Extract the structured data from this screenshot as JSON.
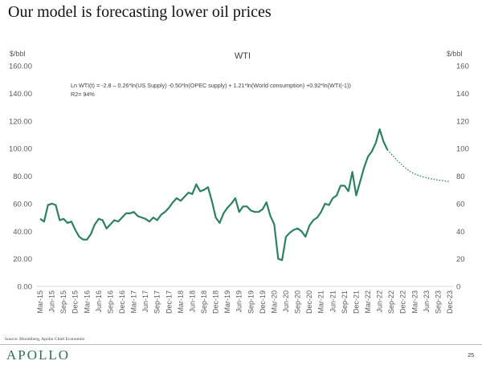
{
  "title": "Our model is forecasting lower oil prices",
  "source": "Source: Bloomberg, Apollo Chief Economist",
  "logo": "APOLLO",
  "page_number": "25",
  "colors": {
    "line": "#2e8060",
    "axis": "#d9d9d9"
  },
  "chart_data": {
    "type": "line",
    "title": "WTI",
    "ylabel_left": "$/bbl",
    "ylabel_right": "$/bbl",
    "annotation": "Ln WTI(t) = -2.8 – 0.26*ln(US Supply) -0.50*ln(OPEC supply) + 1.21*ln(World consumption) +0.92*ln(WTI(-1))",
    "annotation2": "R2= 94%",
    "ylim": [
      0,
      160
    ],
    "left_ticks": [
      "0.00",
      "20.00",
      "40.00",
      "60.00",
      "80.00",
      "100.00",
      "120.00",
      "140.00",
      "160.00"
    ],
    "right_ticks": [
      "0",
      "20",
      "40",
      "60",
      "80",
      "100",
      "120",
      "140",
      "160"
    ],
    "x_labels": [
      "Mar-15",
      "Jun-15",
      "Sep-15",
      "Dec-15",
      "Mar-16",
      "Jun-16",
      "Sep-16",
      "Dec-16",
      "Mar-17",
      "Jun-17",
      "Sep-17",
      "Dec-17",
      "Mar-18",
      "Jun-18",
      "Sep-18",
      "Dec-18",
      "Mar-19",
      "Jun-19",
      "Sep-19",
      "Dec-19",
      "Mar-20",
      "Jun-20",
      "Sep-20",
      "Dec-20",
      "Mar-21",
      "Jun-21",
      "Sep-21",
      "Dec-21",
      "Mar-22",
      "Jun-22",
      "Sep-22",
      "Dec-22",
      "Mar-23",
      "Jun-23",
      "Sep-23",
      "Dec-23"
    ],
    "frequency": "monthly, starting Mar-15",
    "series": [
      {
        "name": "WTI actual",
        "style": "solid",
        "values": [
          49,
          47,
          59,
          60,
          59,
          48,
          49,
          46,
          47,
          41,
          36,
          34,
          34,
          38,
          45,
          49,
          48,
          42,
          45,
          48,
          47,
          50,
          53,
          53,
          54,
          51,
          50,
          49,
          47,
          50,
          48,
          52,
          54,
          57,
          61,
          64,
          62,
          65,
          68,
          67,
          74,
          69,
          70,
          72,
          62,
          50,
          46,
          53,
          57,
          60,
          64,
          54,
          58,
          58,
          55,
          54,
          54,
          56,
          61,
          51,
          45,
          20,
          19,
          36,
          39,
          41,
          42,
          40,
          36,
          44,
          48,
          50,
          54,
          60,
          59,
          64,
          66,
          73,
          73,
          69,
          83,
          66,
          76,
          86,
          94,
          98,
          104,
          114,
          105,
          99
        ]
      },
      {
        "name": "WTI forecast",
        "style": "dotted",
        "start_index": 89,
        "values": [
          99,
          96,
          93,
          90,
          87.5,
          85,
          83,
          81.5,
          80.5,
          79.5,
          78.8,
          78.2,
          77.6,
          77.2,
          76.8,
          76.4,
          76
        ]
      }
    ]
  }
}
